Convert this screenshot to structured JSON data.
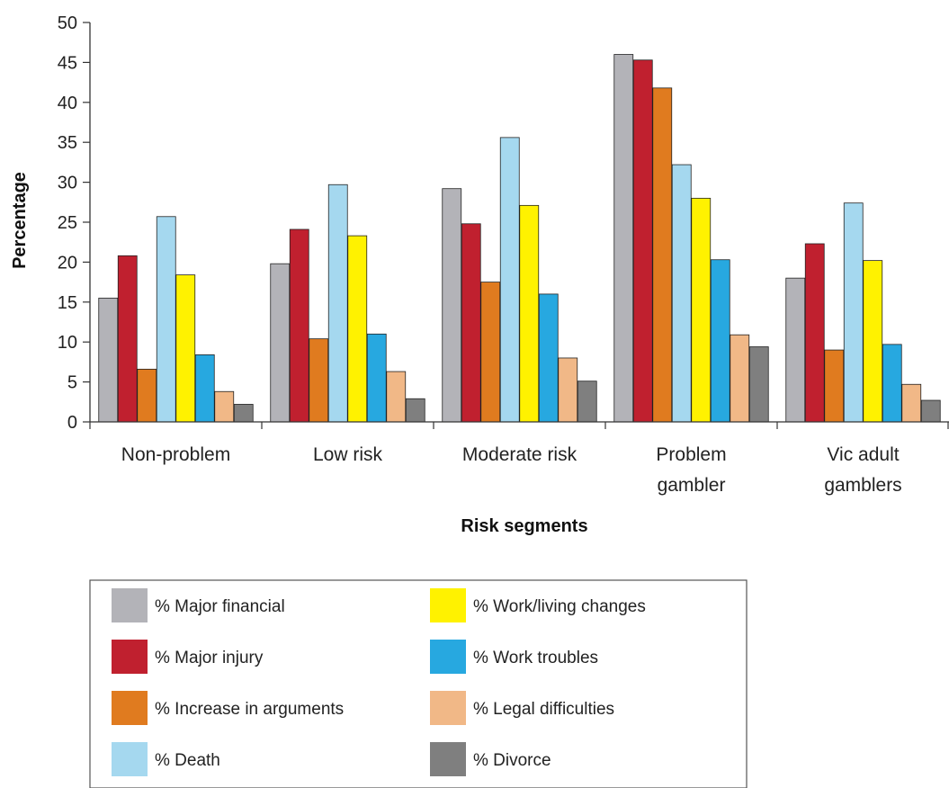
{
  "chart_data": {
    "type": "bar",
    "xlabel": "Risk segments",
    "ylabel": "Percentage",
    "ylim": [
      0,
      50
    ],
    "yticks": [
      0,
      5,
      10,
      15,
      20,
      25,
      30,
      35,
      40,
      45,
      50
    ],
    "grid": false,
    "legend_position": "bottom",
    "categories": [
      [
        "Non-problem"
      ],
      [
        "Low risk"
      ],
      [
        "Moderate risk"
      ],
      [
        "Problem",
        "gambler"
      ],
      [
        "Vic adult",
        "gamblers"
      ]
    ],
    "series": [
      {
        "name": "% Major financial",
        "color": "#b3b3b8",
        "values": [
          15.5,
          19.8,
          29.2,
          46.0,
          18.0
        ]
      },
      {
        "name": "% Major injury",
        "color": "#c0202f",
        "values": [
          20.8,
          24.1,
          24.8,
          45.3,
          22.3
        ]
      },
      {
        "name": "% Increase in arguments",
        "color": "#e07b1f",
        "values": [
          6.6,
          10.4,
          17.5,
          41.8,
          9.0
        ]
      },
      {
        "name": "% Death",
        "color": "#a5d8ef",
        "values": [
          25.7,
          29.7,
          35.6,
          32.2,
          27.4
        ]
      },
      {
        "name": "% Work/living changes",
        "color": "#fff200",
        "values": [
          18.4,
          23.3,
          27.1,
          28.0,
          20.2
        ]
      },
      {
        "name": "% Work troubles",
        "color": "#27a8e0",
        "values": [
          8.4,
          11.0,
          16.0,
          20.3,
          9.7
        ]
      },
      {
        "name": "% Legal difficulties",
        "color": "#f1b887",
        "values": [
          3.8,
          6.3,
          8.0,
          10.9,
          4.7
        ]
      },
      {
        "name": "% Divorce",
        "color": "#7f7f7f",
        "values": [
          2.2,
          2.9,
          5.1,
          9.4,
          2.7
        ]
      }
    ]
  }
}
